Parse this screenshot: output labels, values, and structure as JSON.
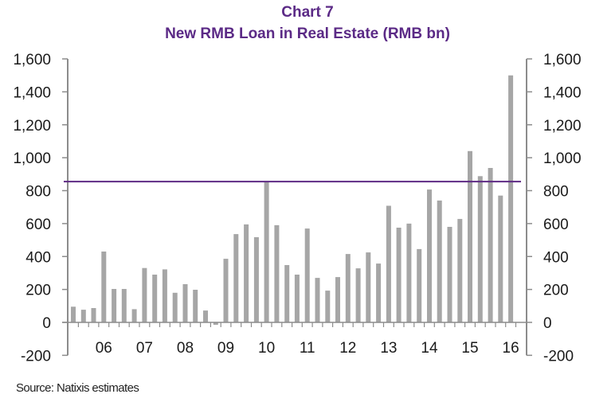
{
  "header": {
    "title_line1": "Chart 7",
    "title_line2": "New RMB Loan in Real Estate (RMB bn)"
  },
  "footer": {
    "source": "Source: Natixis estimates"
  },
  "colors": {
    "title": "#5b2a86",
    "bars": "#a6a6a6",
    "reference_line": "#5e2a84",
    "axis": "#8c8c8c"
  },
  "chart_data": {
    "type": "bar",
    "title": "Chart 7 — New RMB Loan in Real Estate (RMB bn)",
    "xlabel": "",
    "ylabel": "RMB bn",
    "ylim": [
      -200,
      1600
    ],
    "yticks": [
      -200,
      0,
      200,
      400,
      600,
      800,
      1000,
      1200,
      1400,
      1600
    ],
    "ytick_labels": [
      "-200",
      "0",
      "200",
      "400",
      "600",
      "800",
      "1,000",
      "1,200",
      "1,400",
      "1,600"
    ],
    "secondary_y_axis": true,
    "grid": false,
    "legend": null,
    "x_tick_labels": [
      "06",
      "07",
      "08",
      "09",
      "10",
      "11",
      "12",
      "13",
      "14",
      "15",
      "16"
    ],
    "frequency": "quarterly",
    "categories": [
      "2005Q2",
      "2005Q3",
      "2005Q4",
      "2006Q1",
      "2006Q2",
      "2006Q3",
      "2006Q4",
      "2007Q1",
      "2007Q2",
      "2007Q3",
      "2007Q4",
      "2008Q1",
      "2008Q2",
      "2008Q3",
      "2008Q4",
      "2009Q1",
      "2009Q2",
      "2009Q3",
      "2009Q4",
      "2010Q1",
      "2010Q2",
      "2010Q3",
      "2010Q4",
      "2011Q1",
      "2011Q2",
      "2011Q3",
      "2011Q4",
      "2012Q1",
      "2012Q2",
      "2012Q3",
      "2012Q4",
      "2013Q1",
      "2013Q2",
      "2013Q3",
      "2013Q4",
      "2014Q1",
      "2014Q2",
      "2014Q3",
      "2014Q4",
      "2015Q1",
      "2015Q2",
      "2015Q3",
      "2015Q4",
      "2016Q1"
    ],
    "values": [
      95,
      77,
      87,
      430,
      203,
      203,
      80,
      330,
      290,
      322,
      180,
      232,
      198,
      72,
      -15,
      386,
      536,
      595,
      517,
      855,
      590,
      348,
      290,
      570,
      270,
      193,
      275,
      415,
      328,
      425,
      357,
      708,
      575,
      600,
      445,
      807,
      740,
      580,
      628,
      1040,
      888,
      938,
      770,
      1500
    ],
    "annotations": [
      {
        "type": "horizontal_line",
        "y": 855,
        "color": "#5e2a84",
        "note": "reference level at 2010Q1 peak"
      }
    ]
  }
}
